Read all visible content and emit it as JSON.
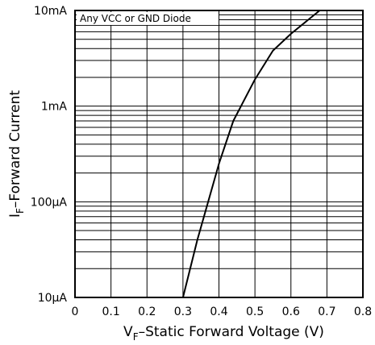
{
  "chart_data": {
    "type": "line",
    "title": "",
    "annotation": "Any VCC or GND Diode",
    "xlabel": {
      "main": "V",
      "sub": "F",
      "rest": "–Static Forward Voltage (V)"
    },
    "ylabel": {
      "main": "I",
      "sub": "F",
      "rest": "–Forward Current"
    },
    "x_ticks": [
      {
        "value": 0,
        "label": "0"
      },
      {
        "value": 0.1,
        "label": "0.1"
      },
      {
        "value": 0.2,
        "label": "0.2"
      },
      {
        "value": 0.3,
        "label": "0.3"
      },
      {
        "value": 0.4,
        "label": "0.4"
      },
      {
        "value": 0.5,
        "label": "0.5"
      },
      {
        "value": 0.6,
        "label": "0.6"
      },
      {
        "value": 0.7,
        "label": "0.7"
      },
      {
        "value": 0.8,
        "label": "0.8"
      }
    ],
    "y_ticks": [
      {
        "value": 1e-05,
        "label": "10μA"
      },
      {
        "value": 0.0001,
        "label": "100μA"
      },
      {
        "value": 0.001,
        "label": "1mA"
      },
      {
        "value": 0.01,
        "label": "10mA"
      }
    ],
    "xlim": [
      0,
      0.8
    ],
    "ylim": [
      1e-05,
      0.01
    ],
    "y_scale": "log",
    "grid": true,
    "series": [
      {
        "x": [
          0.3,
          0.34,
          0.4,
          0.44,
          0.5,
          0.55,
          0.6,
          0.68
        ],
        "y": [
          1e-05,
          4e-05,
          0.00025,
          0.0007,
          0.0019,
          0.0038,
          0.0057,
          0.01
        ]
      }
    ]
  }
}
